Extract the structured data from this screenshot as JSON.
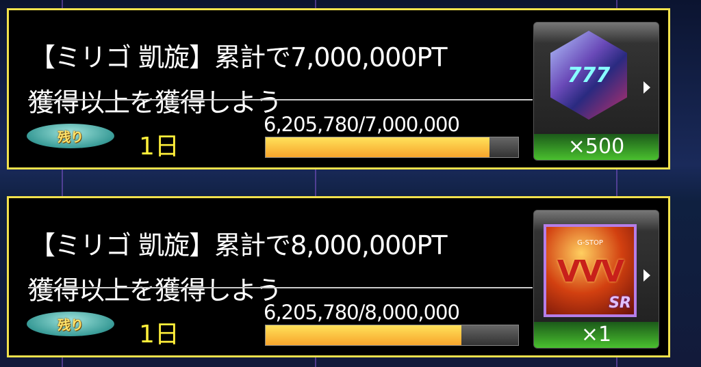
{
  "missions": [
    {
      "title": "【ミリゴ 凱旋】累計で7,000,000PT",
      "title_line2": "獲得以上を獲得しよう",
      "remaining_label": "残り",
      "remaining_days": "1日",
      "progress_text": "6,205,780/7,000,000",
      "progress_fraction": 0.8865,
      "reward": {
        "icon": "777-gem-icon",
        "quantity": "×500"
      }
    },
    {
      "title": "【ミリゴ 凱旋】累計で8,000,000PT",
      "title_line2": "獲得以上を獲得しよう",
      "remaining_label": "残り",
      "remaining_days": "1日",
      "progress_text": "6,205,780/8,000,000",
      "progress_fraction": 0.7757,
      "reward": {
        "icon": "vvv-sr-card-icon",
        "card_text": "VVV",
        "card_subtext": "G-STOP",
        "rarity": "SR",
        "quantity": "×1"
      }
    }
  ],
  "colors": {
    "border": "#f2e24c",
    "progress": "#f7a52c",
    "days": "#ffef3a"
  }
}
